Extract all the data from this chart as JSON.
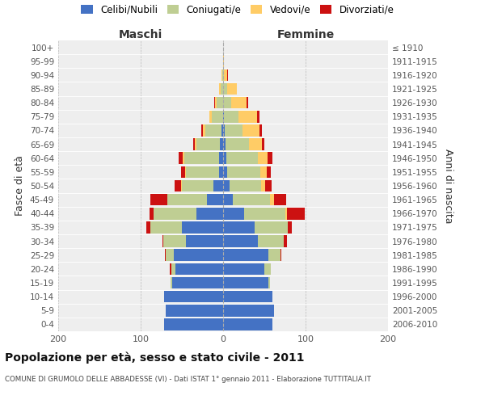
{
  "age_groups": [
    "0-4",
    "5-9",
    "10-14",
    "15-19",
    "20-24",
    "25-29",
    "30-34",
    "35-39",
    "40-44",
    "45-49",
    "50-54",
    "55-59",
    "60-64",
    "65-69",
    "70-74",
    "75-79",
    "80-84",
    "85-89",
    "90-94",
    "95-99",
    "100+"
  ],
  "birth_years": [
    "2006-2010",
    "2001-2005",
    "1996-2000",
    "1991-1995",
    "1986-1990",
    "1981-1985",
    "1976-1980",
    "1971-1975",
    "1966-1970",
    "1961-1965",
    "1956-1960",
    "1951-1955",
    "1946-1950",
    "1941-1945",
    "1936-1940",
    "1931-1935",
    "1926-1930",
    "1921-1925",
    "1916-1920",
    "1911-1915",
    "≤ 1910"
  ],
  "maschi": {
    "celibi": [
      72,
      70,
      72,
      62,
      58,
      60,
      45,
      50,
      32,
      20,
      12,
      5,
      5,
      4,
      2,
      0,
      0,
      0,
      0,
      0,
      0
    ],
    "coniugati": [
      0,
      0,
      0,
      2,
      5,
      10,
      28,
      38,
      52,
      48,
      38,
      40,
      42,
      28,
      20,
      14,
      8,
      3,
      1,
      0,
      0
    ],
    "vedovi": [
      0,
      0,
      0,
      0,
      0,
      0,
      0,
      0,
      0,
      0,
      1,
      1,
      2,
      2,
      3,
      3,
      2,
      2,
      1,
      0,
      0
    ],
    "divorziati": [
      0,
      0,
      0,
      0,
      2,
      1,
      1,
      5,
      5,
      20,
      8,
      5,
      5,
      2,
      1,
      0,
      1,
      0,
      0,
      0,
      0
    ]
  },
  "femmine": {
    "nubili": [
      60,
      62,
      60,
      55,
      50,
      55,
      42,
      38,
      25,
      12,
      8,
      5,
      4,
      3,
      2,
      1,
      0,
      0,
      0,
      0,
      0
    ],
    "coniugate": [
      0,
      0,
      0,
      2,
      8,
      15,
      32,
      40,
      50,
      45,
      38,
      40,
      38,
      28,
      22,
      18,
      10,
      5,
      1,
      0,
      0
    ],
    "vedove": [
      0,
      0,
      0,
      0,
      0,
      0,
      0,
      0,
      2,
      5,
      5,
      8,
      12,
      16,
      20,
      22,
      18,
      12,
      4,
      1,
      0
    ],
    "divorziate": [
      0,
      0,
      0,
      0,
      0,
      1,
      3,
      5,
      22,
      14,
      8,
      5,
      6,
      3,
      3,
      3,
      2,
      0,
      1,
      0,
      0
    ]
  },
  "colors": {
    "celibi_nubili": "#4472C4",
    "coniugati": "#BFCE93",
    "vedovi": "#FFCC66",
    "divorziati": "#CC1111"
  },
  "xlim": 200,
  "title": "Popolazione per età, sesso e stato civile - 2011",
  "subtitle": "COMUNE DI GRUMOLO DELLE ABBADESSE (VI) - Dati ISTAT 1° gennaio 2011 - Elaborazione TUTTITALIA.IT",
  "ylabel_left": "Fasce di età",
  "ylabel_right": "Anni di nascita",
  "xlabel_maschi": "Maschi",
  "xlabel_femmine": "Femmine",
  "legend_labels": [
    "Celibi/Nubili",
    "Coniugati/e",
    "Vedovi/e",
    "Divorziati/e"
  ],
  "background_color": "#ffffff",
  "plot_bg_color": "#eeeeee"
}
